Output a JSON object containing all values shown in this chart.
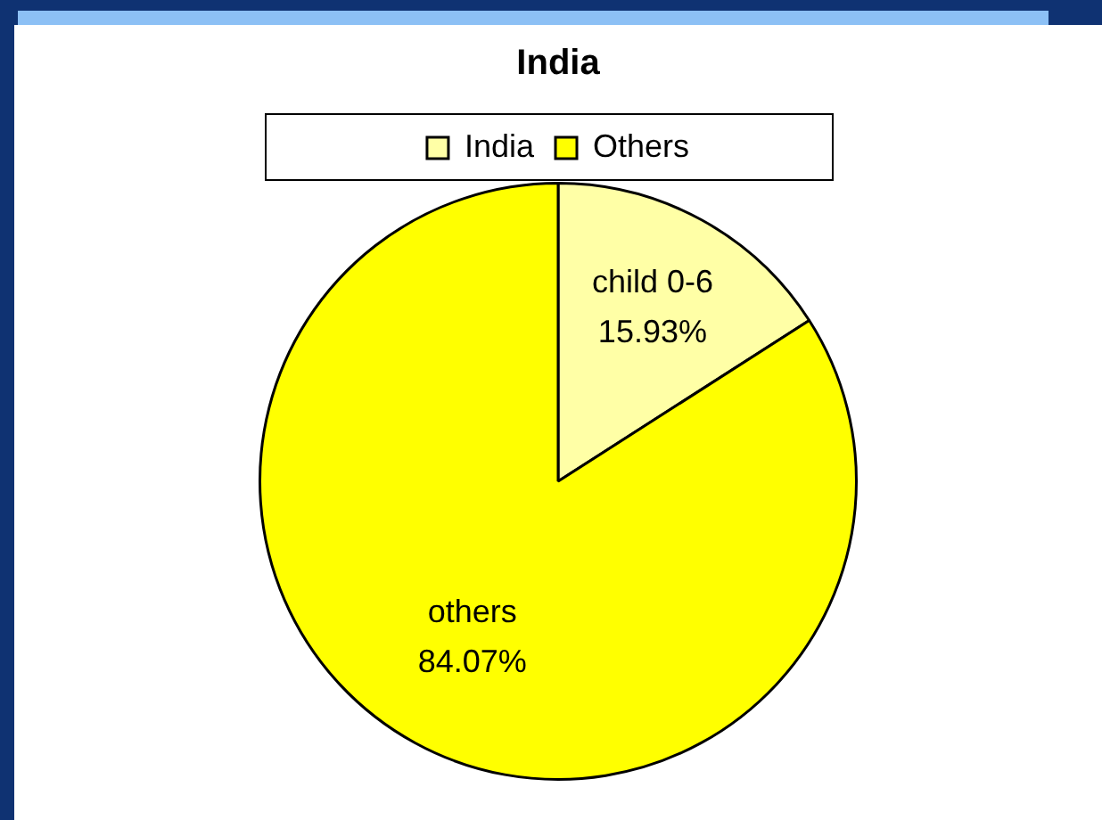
{
  "chart_data": {
    "type": "pie",
    "title": "India",
    "categories": [
      "India",
      "Others"
    ],
    "values": [
      15.93,
      84.07
    ],
    "colors": [
      "#ffffa6",
      "#ffff00"
    ],
    "value_labels": [
      "child 0-6\n15.93%",
      "others\n84.07%"
    ],
    "legend": "top"
  }
}
